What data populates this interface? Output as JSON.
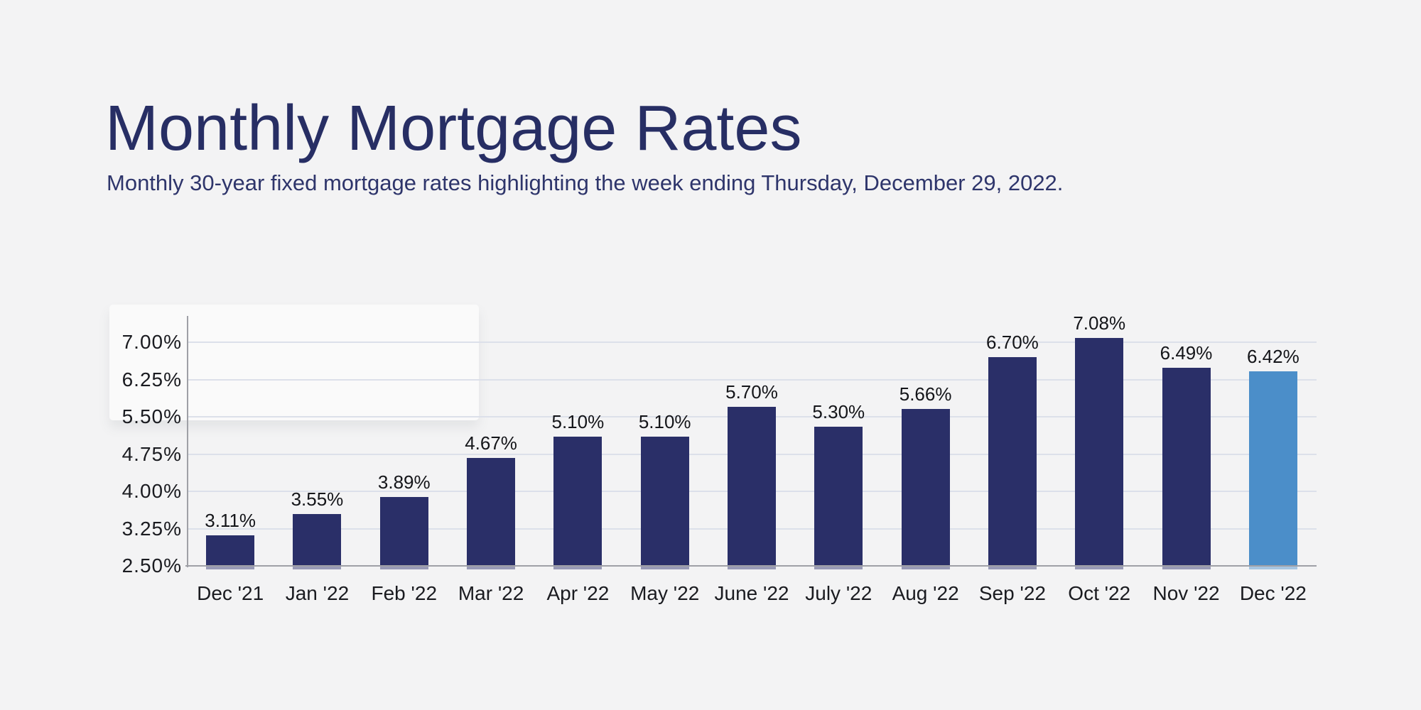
{
  "page": {
    "background": "#f3f3f4"
  },
  "header": {
    "title": "Monthly Mortgage Rates",
    "subtitle": "Monthly 30-year fixed mortgage rates highlighting the week ending Thursday, December 29, 2022."
  },
  "chart_data": {
    "type": "bar",
    "title": "Monthly Mortgage Rates",
    "categories": [
      "Dec '21",
      "Jan '22",
      "Feb '22",
      "Mar '22",
      "Apr '22",
      "May '22",
      "June '22",
      "July '22",
      "Aug '22",
      "Sep '22",
      "Oct '22",
      "Nov '22",
      "Dec '22"
    ],
    "values": [
      3.11,
      3.55,
      3.89,
      4.67,
      5.1,
      5.1,
      5.7,
      5.3,
      5.66,
      6.7,
      7.08,
      6.49,
      6.42
    ],
    "value_labels": [
      "3.11%",
      "3.55%",
      "3.89%",
      "4.67%",
      "5.10%",
      "5.10%",
      "5.70%",
      "5.30%",
      "5.66%",
      "6.70%",
      "7.08%",
      "6.49%",
      "6.42%"
    ],
    "y_ticks": [
      {
        "value": 7.0,
        "label": "7.00%"
      },
      {
        "value": 6.25,
        "label": "6.25%"
      },
      {
        "value": 5.5,
        "label": "5.50%"
      },
      {
        "value": 4.75,
        "label": "4.75%"
      },
      {
        "value": 4.0,
        "label": "4.00%"
      },
      {
        "value": 3.25,
        "label": "3.25%"
      },
      {
        "value": 2.5,
        "label": "2.50%"
      }
    ],
    "ylim": [
      2.5,
      7.45
    ],
    "grid": true,
    "legend": "none",
    "bar_color": "#2a2f68",
    "highlight_color": "#4b8ec9",
    "highlight_index": 12,
    "gridline_color": "#dce0ea",
    "axis_line_color": "#9fa0a6",
    "tick_label_color": "#1a1b20",
    "value_label_color": "#141519"
  }
}
